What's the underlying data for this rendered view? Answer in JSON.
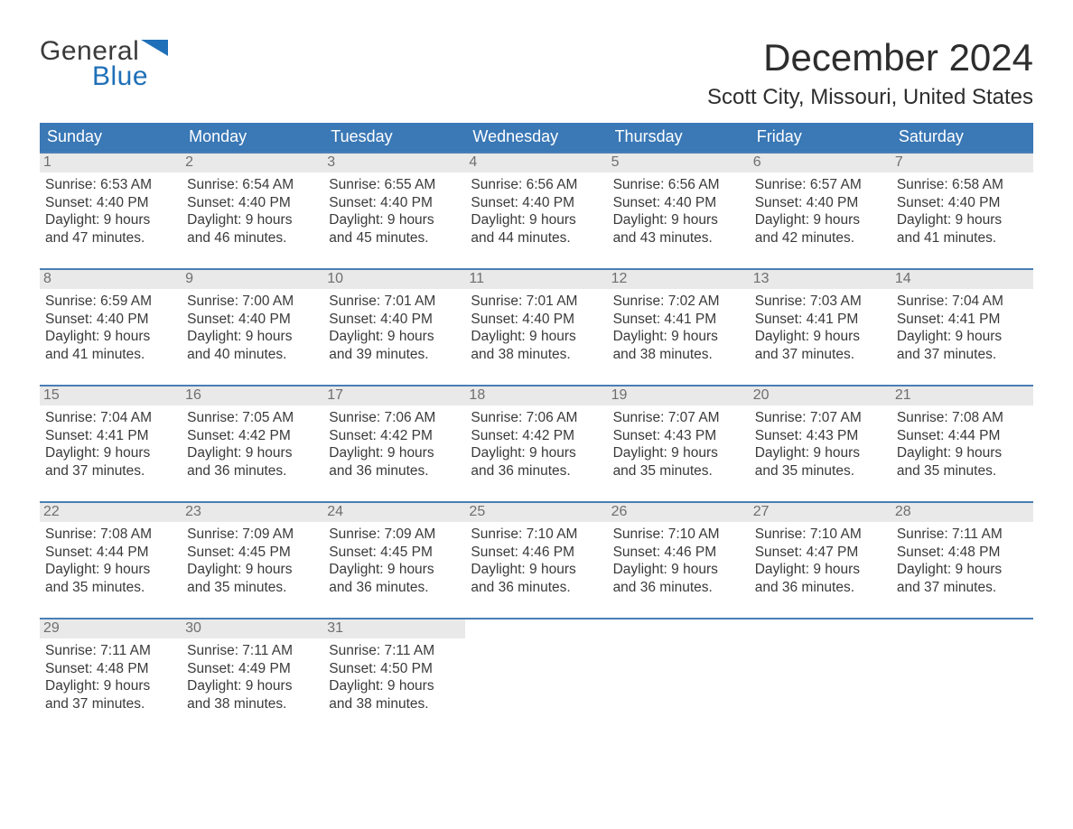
{
  "logo": {
    "text1": "General",
    "text2": "Blue",
    "accent_color": "#1f70b8",
    "text_color": "#3a3a3a"
  },
  "title": "December 2024",
  "location": "Scott City, Missouri, United States",
  "colors": {
    "header_bg": "#3a78b6",
    "header_text": "#ffffff",
    "week_border": "#4a7fb5",
    "daynum_bg": "#e9e9e9",
    "daynum_text": "#6f6f6f",
    "body_text": "#3a3a3a",
    "background": "#ffffff"
  },
  "typography": {
    "title_fontsize": 42,
    "location_fontsize": 24,
    "dow_fontsize": 18,
    "detail_fontsize": 15.5,
    "logo_fontsize": 30
  },
  "calendar": {
    "dow": [
      "Sunday",
      "Monday",
      "Tuesday",
      "Wednesday",
      "Thursday",
      "Friday",
      "Saturday"
    ],
    "weeks": [
      [
        {
          "n": "1",
          "sunrise": "6:53 AM",
          "sunset": "4:40 PM",
          "dl1": "9 hours",
          "dl2": "47 minutes."
        },
        {
          "n": "2",
          "sunrise": "6:54 AM",
          "sunset": "4:40 PM",
          "dl1": "9 hours",
          "dl2": "46 minutes."
        },
        {
          "n": "3",
          "sunrise": "6:55 AM",
          "sunset": "4:40 PM",
          "dl1": "9 hours",
          "dl2": "45 minutes."
        },
        {
          "n": "4",
          "sunrise": "6:56 AM",
          "sunset": "4:40 PM",
          "dl1": "9 hours",
          "dl2": "44 minutes."
        },
        {
          "n": "5",
          "sunrise": "6:56 AM",
          "sunset": "4:40 PM",
          "dl1": "9 hours",
          "dl2": "43 minutes."
        },
        {
          "n": "6",
          "sunrise": "6:57 AM",
          "sunset": "4:40 PM",
          "dl1": "9 hours",
          "dl2": "42 minutes."
        },
        {
          "n": "7",
          "sunrise": "6:58 AM",
          "sunset": "4:40 PM",
          "dl1": "9 hours",
          "dl2": "41 minutes."
        }
      ],
      [
        {
          "n": "8",
          "sunrise": "6:59 AM",
          "sunset": "4:40 PM",
          "dl1": "9 hours",
          "dl2": "41 minutes."
        },
        {
          "n": "9",
          "sunrise": "7:00 AM",
          "sunset": "4:40 PM",
          "dl1": "9 hours",
          "dl2": "40 minutes."
        },
        {
          "n": "10",
          "sunrise": "7:01 AM",
          "sunset": "4:40 PM",
          "dl1": "9 hours",
          "dl2": "39 minutes."
        },
        {
          "n": "11",
          "sunrise": "7:01 AM",
          "sunset": "4:40 PM",
          "dl1": "9 hours",
          "dl2": "38 minutes."
        },
        {
          "n": "12",
          "sunrise": "7:02 AM",
          "sunset": "4:41 PM",
          "dl1": "9 hours",
          "dl2": "38 minutes."
        },
        {
          "n": "13",
          "sunrise": "7:03 AM",
          "sunset": "4:41 PM",
          "dl1": "9 hours",
          "dl2": "37 minutes."
        },
        {
          "n": "14",
          "sunrise": "7:04 AM",
          "sunset": "4:41 PM",
          "dl1": "9 hours",
          "dl2": "37 minutes."
        }
      ],
      [
        {
          "n": "15",
          "sunrise": "7:04 AM",
          "sunset": "4:41 PM",
          "dl1": "9 hours",
          "dl2": "37 minutes."
        },
        {
          "n": "16",
          "sunrise": "7:05 AM",
          "sunset": "4:42 PM",
          "dl1": "9 hours",
          "dl2": "36 minutes."
        },
        {
          "n": "17",
          "sunrise": "7:06 AM",
          "sunset": "4:42 PM",
          "dl1": "9 hours",
          "dl2": "36 minutes."
        },
        {
          "n": "18",
          "sunrise": "7:06 AM",
          "sunset": "4:42 PM",
          "dl1": "9 hours",
          "dl2": "36 minutes."
        },
        {
          "n": "19",
          "sunrise": "7:07 AM",
          "sunset": "4:43 PM",
          "dl1": "9 hours",
          "dl2": "35 minutes."
        },
        {
          "n": "20",
          "sunrise": "7:07 AM",
          "sunset": "4:43 PM",
          "dl1": "9 hours",
          "dl2": "35 minutes."
        },
        {
          "n": "21",
          "sunrise": "7:08 AM",
          "sunset": "4:44 PM",
          "dl1": "9 hours",
          "dl2": "35 minutes."
        }
      ],
      [
        {
          "n": "22",
          "sunrise": "7:08 AM",
          "sunset": "4:44 PM",
          "dl1": "9 hours",
          "dl2": "35 minutes."
        },
        {
          "n": "23",
          "sunrise": "7:09 AM",
          "sunset": "4:45 PM",
          "dl1": "9 hours",
          "dl2": "35 minutes."
        },
        {
          "n": "24",
          "sunrise": "7:09 AM",
          "sunset": "4:45 PM",
          "dl1": "9 hours",
          "dl2": "36 minutes."
        },
        {
          "n": "25",
          "sunrise": "7:10 AM",
          "sunset": "4:46 PM",
          "dl1": "9 hours",
          "dl2": "36 minutes."
        },
        {
          "n": "26",
          "sunrise": "7:10 AM",
          "sunset": "4:46 PM",
          "dl1": "9 hours",
          "dl2": "36 minutes."
        },
        {
          "n": "27",
          "sunrise": "7:10 AM",
          "sunset": "4:47 PM",
          "dl1": "9 hours",
          "dl2": "36 minutes."
        },
        {
          "n": "28",
          "sunrise": "7:11 AM",
          "sunset": "4:48 PM",
          "dl1": "9 hours",
          "dl2": "37 minutes."
        }
      ],
      [
        {
          "n": "29",
          "sunrise": "7:11 AM",
          "sunset": "4:48 PM",
          "dl1": "9 hours",
          "dl2": "37 minutes."
        },
        {
          "n": "30",
          "sunrise": "7:11 AM",
          "sunset": "4:49 PM",
          "dl1": "9 hours",
          "dl2": "38 minutes."
        },
        {
          "n": "31",
          "sunrise": "7:11 AM",
          "sunset": "4:50 PM",
          "dl1": "9 hours",
          "dl2": "38 minutes."
        },
        {
          "empty": true
        },
        {
          "empty": true
        },
        {
          "empty": true
        },
        {
          "empty": true
        }
      ]
    ]
  },
  "labels": {
    "sunrise_prefix": "Sunrise: ",
    "sunset_prefix": "Sunset: ",
    "daylight_prefix": "Daylight: ",
    "and": "and "
  }
}
